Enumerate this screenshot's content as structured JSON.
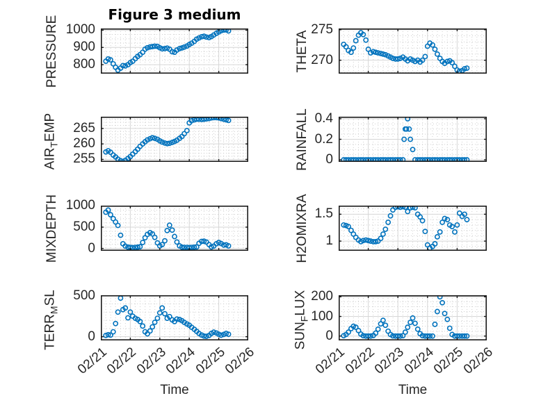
{
  "style": {
    "marker_color": "#0072BD",
    "axis_color": "#1a1a1a",
    "text_color": "#262626",
    "grid_color": "#d6d6d6",
    "minor_grid_color": "#c9c9c9",
    "background": "#ffffff"
  },
  "chart_data": {
    "type": "scatter",
    "title": "Figure 3 medium",
    "xlabel": "Time",
    "legend": "none",
    "grid": "major solid, minor dotted",
    "xlim": [
      0,
      5
    ],
    "xticks": [
      0,
      1,
      2,
      3,
      4,
      5
    ],
    "xtick_labels": [
      "02/21",
      "02/22",
      "02/23",
      "02/24",
      "02/25",
      "02/26"
    ],
    "x_unit": "days since 02/21 00:00",
    "x": [
      0.17,
      0.25,
      0.33,
      0.42,
      0.5,
      0.58,
      0.67,
      0.75,
      0.83,
      0.92,
      1.0,
      1.08,
      1.17,
      1.25,
      1.33,
      1.42,
      1.5,
      1.58,
      1.67,
      1.75,
      1.83,
      1.92,
      2.0,
      2.08,
      2.17,
      2.25,
      2.33,
      2.42,
      2.5,
      2.58,
      2.67,
      2.75,
      2.83,
      2.92,
      3.0,
      3.08,
      3.17,
      3.25,
      3.33,
      3.42,
      3.5,
      3.58,
      3.67,
      3.75,
      3.83,
      3.92,
      4.0,
      4.08,
      4.17,
      4.25,
      4.33
    ],
    "subplots": [
      {
        "name": "PRESSURE",
        "row": 0,
        "col": 0,
        "ylabel": [
          [
            "PRESSURE",
            false
          ]
        ],
        "ylim": [
          748,
          1010
        ],
        "yticks": [
          800,
          900,
          1000
        ],
        "yminor": 25,
        "values": [
          820,
          833,
          828,
          805,
          785,
          768,
          780,
          795,
          793,
          800,
          812,
          820,
          835,
          848,
          858,
          872,
          890,
          898,
          903,
          905,
          907,
          906,
          898,
          892,
          893,
          896,
          890,
          875,
          872,
          885,
          893,
          897,
          902,
          908,
          917,
          925,
          935,
          948,
          955,
          962,
          965,
          960,
          957,
          963,
          972,
          982,
          990,
          997,
          1001,
          1002,
          996
        ]
      },
      {
        "name": "THETA",
        "row": 0,
        "col": 1,
        "ylabel": [
          [
            "THETA",
            false
          ]
        ],
        "ylim": [
          267.8,
          275.2
        ],
        "yticks": [
          270,
          275
        ],
        "yminor": 1,
        "values": [
          272.6,
          272.2,
          271.6,
          271.3,
          272.0,
          273.2,
          274.1,
          274.5,
          274.2,
          273.3,
          271.8,
          271.2,
          271.4,
          271.3,
          271.2,
          271.1,
          271.0,
          270.9,
          270.7,
          270.5,
          270.3,
          270.2,
          270.2,
          270.3,
          270.5,
          270.2,
          269.9,
          270.2,
          270.0,
          269.8,
          270.0,
          269.7,
          270.0,
          270.6,
          272.3,
          272.8,
          272.5,
          271.8,
          271.0,
          270.3,
          269.8,
          269.5,
          269.8,
          269.9,
          269.6,
          269.0,
          268.4,
          268.2,
          268.3,
          268.6,
          268.7
        ]
      },
      {
        "name": "AIRTEMP",
        "row": 1,
        "col": 0,
        "ylabel": [
          [
            "AIR",
            false
          ],
          [
            "T",
            true
          ],
          [
            "EMP",
            false
          ]
        ],
        "ylim": [
          254.2,
          268.8
        ],
        "yticks": [
          255,
          260,
          265
        ],
        "yminor": 1,
        "values": [
          257.4,
          257.8,
          257.3,
          256.4,
          255.8,
          255.1,
          254.6,
          254.3,
          254.7,
          255.3,
          255.9,
          256.7,
          257.5,
          258.3,
          259.2,
          260.0,
          260.7,
          261.3,
          261.7,
          262.0,
          261.8,
          261.5,
          261.0,
          260.6,
          260.3,
          260.1,
          260.2,
          260.5,
          260.8,
          261.2,
          261.8,
          262.4,
          263.3,
          264.3,
          266.8,
          267.5,
          267.8,
          268.0,
          268.0,
          267.9,
          268.0,
          268.1,
          268.2,
          268.4,
          268.5,
          268.5,
          268.4,
          268.2,
          268.0,
          267.8,
          267.6
        ]
      },
      {
        "name": "RAINFALL",
        "row": 1,
        "col": 1,
        "ylabel": [
          [
            "RAINFALL",
            false
          ]
        ],
        "ylim": [
          -0.02,
          0.42
        ],
        "yticks": [
          0,
          0.2,
          0.4
        ],
        "yminor": 0.05,
        "values": [
          0,
          0,
          0,
          0,
          0,
          0,
          0,
          0,
          0,
          0,
          0,
          0,
          0,
          0,
          0,
          0,
          0,
          0,
          0,
          0,
          0,
          0,
          0,
          0,
          0,
          0.3,
          0.4,
          0.2,
          0.1,
          0,
          0,
          0,
          0,
          0,
          0,
          0,
          0,
          0,
          0,
          0,
          0,
          0,
          0,
          0,
          0,
          0,
          0,
          0,
          0,
          0,
          0
        ],
        "extra_x": [
          2.21,
          2.29,
          2.38
        ],
        "extra_y": [
          0.2,
          0.3,
          0.3
        ]
      },
      {
        "name": "MIXDEPTH",
        "row": 2,
        "col": 0,
        "ylabel": [
          [
            "MIXDEPTH",
            false
          ]
        ],
        "ylim": [
          -55,
          1005
        ],
        "yticks": [
          0,
          500,
          1000
        ],
        "yminor": 100,
        "values": [
          850,
          900,
          790,
          700,
          620,
          540,
          310,
          110,
          55,
          30,
          25,
          20,
          25,
          30,
          40,
          140,
          250,
          330,
          370,
          340,
          260,
          130,
          60,
          90,
          180,
          420,
          545,
          430,
          280,
          150,
          60,
          30,
          25,
          25,
          20,
          25,
          30,
          35,
          120,
          165,
          170,
          150,
          90,
          35,
          55,
          110,
          140,
          115,
          80,
          85,
          60
        ]
      },
      {
        "name": "H2OMIXRA",
        "row": 2,
        "col": 1,
        "ylabel": [
          [
            "H2OMIXRA",
            false
          ]
        ],
        "ylim": [
          0.82,
          1.66
        ],
        "yticks": [
          1,
          1.5
        ],
        "yminor": 0.1,
        "values": [
          1.3,
          1.29,
          1.27,
          1.2,
          1.13,
          1.07,
          1.02,
          0.99,
          1.01,
          1.02,
          1.01,
          1.0,
          0.99,
          0.99,
          1.0,
          1.05,
          1.13,
          1.22,
          1.35,
          1.47,
          1.58,
          1.63,
          1.64,
          1.63,
          1.64,
          1.63,
          1.55,
          1.62,
          1.63,
          1.62,
          1.5,
          1.45,
          1.38,
          1.18,
          0.93,
          0.87,
          0.9,
          0.95,
          1.08,
          1.17,
          1.35,
          1.42,
          1.4,
          1.3,
          1.27,
          1.17,
          1.3,
          1.52,
          1.46,
          1.5,
          1.4
        ]
      },
      {
        "name": "TERRMSL",
        "row": 3,
        "col": 0,
        "ylabel": [
          [
            "TERR",
            false
          ],
          [
            "M",
            true
          ],
          [
            "SL",
            false
          ]
        ],
        "ylim": [
          -45,
          505
        ],
        "yticks": [
          0,
          500
        ],
        "yminor": 100,
        "values": [
          15,
          25,
          20,
          60,
          160,
          300,
          470,
          330,
          350,
          230,
          300,
          250,
          225,
          210,
          185,
          130,
          60,
          35,
          70,
          120,
          175,
          225,
          290,
          350,
          280,
          225,
          245,
          205,
          185,
          215,
          210,
          195,
          175,
          155,
          140,
          115,
          90,
          65,
          40,
          20,
          8,
          5,
          15,
          40,
          55,
          45,
          30,
          18,
          28,
          40,
          30
        ]
      },
      {
        "name": "SUNFLUX",
        "row": 3,
        "col": 1,
        "ylabel": [
          [
            "SUN",
            false
          ],
          [
            "F",
            true
          ],
          [
            "LUX",
            false
          ]
        ],
        "ylim": [
          -22,
          208
        ],
        "yticks": [
          0,
          100,
          200
        ],
        "yminor": 25,
        "values": [
          2,
          8,
          20,
          38,
          50,
          45,
          28,
          10,
          2,
          0,
          0,
          0,
          3,
          15,
          35,
          62,
          80,
          55,
          25,
          8,
          1,
          0,
          0,
          0,
          2,
          20,
          45,
          70,
          92,
          65,
          35,
          12,
          2,
          0,
          0,
          0,
          0,
          60,
          125,
          200,
          170,
          115,
          85,
          40,
          8,
          0,
          0,
          0,
          0,
          0,
          0
        ]
      }
    ]
  }
}
